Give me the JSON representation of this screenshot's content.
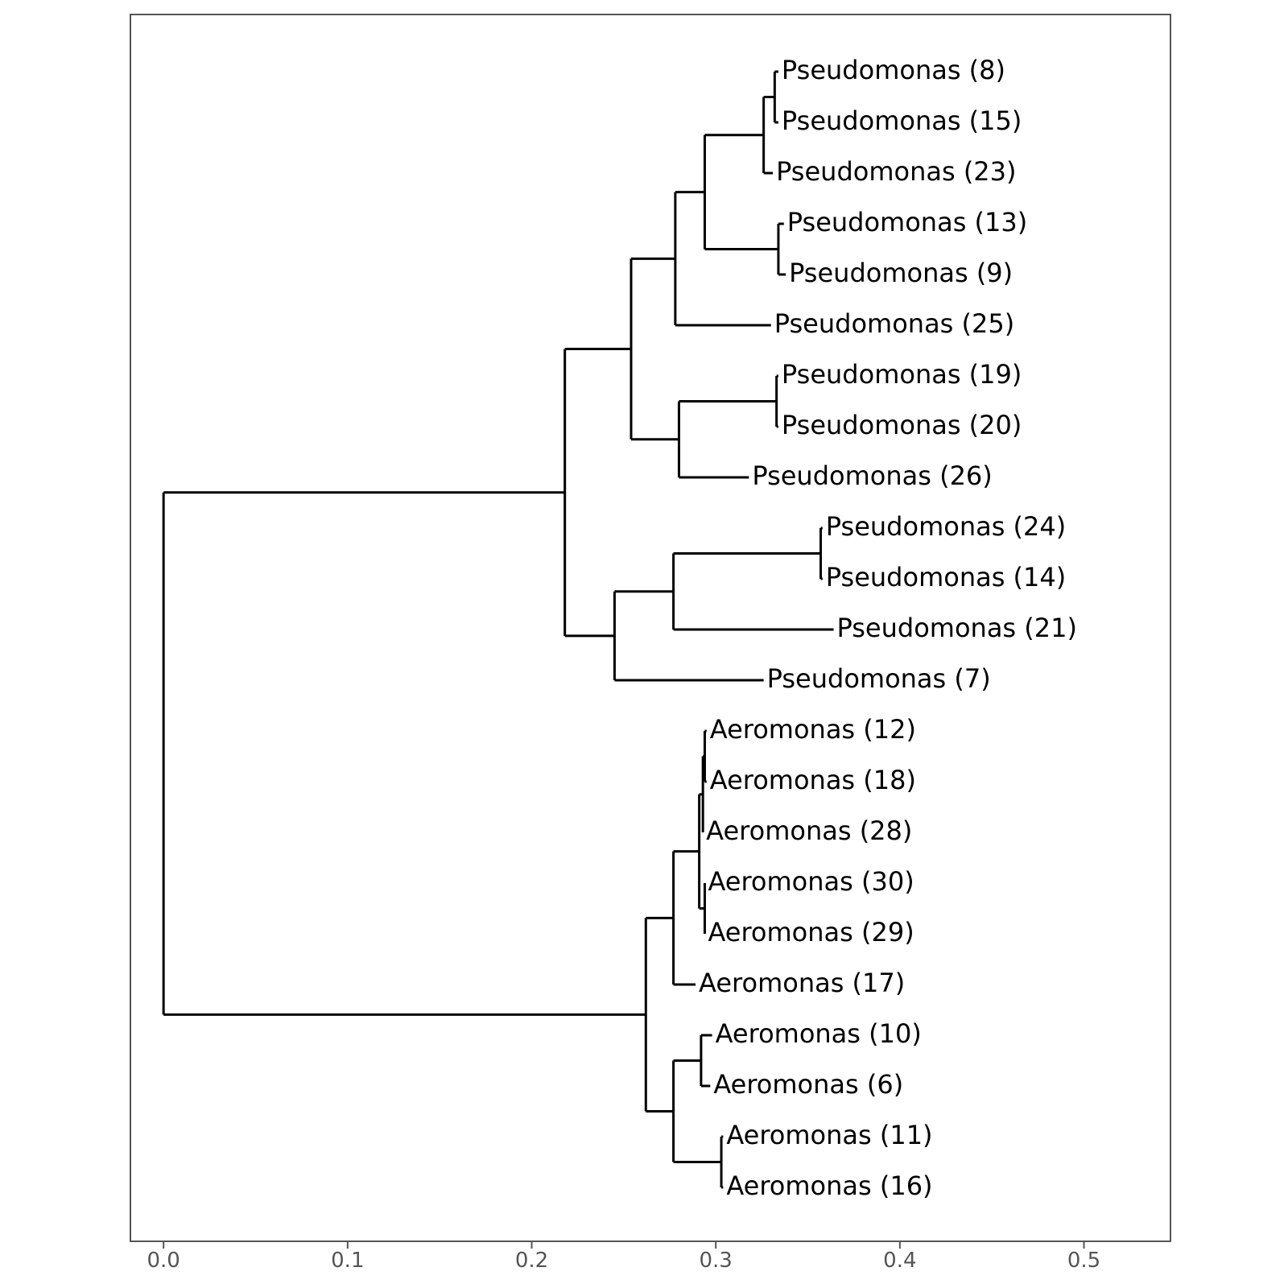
{
  "chart_data": {
    "type": "dendrogram",
    "xlim": [
      -0.018,
      0.547
    ],
    "x_ticks": [
      0.0,
      0.1,
      0.2,
      0.3,
      0.4,
      0.5
    ],
    "x_tick_labels": [
      "0.0",
      "0.1",
      "0.2",
      "0.3",
      "0.4",
      "0.5"
    ],
    "grid": false,
    "tree": {
      "x": 0,
      "children": [
        {
          "x": 0.218,
          "children": [
            {
              "x": 0.254,
              "children": [
                {
                  "x": 0.278,
                  "children": [
                    {
                      "x": 0.294,
                      "children": [
                        {
                          "x": 0.326,
                          "children": [
                            {
                              "x": 0.332,
                              "children": [
                                {
                                  "label": "Pseudomonas (8)",
                                  "x": 0.334
                                },
                                {
                                  "label": "Pseudomonas (15)",
                                  "x": 0.334
                                }
                              ]
                            },
                            {
                              "label": "Pseudomonas (23)",
                              "x": 0.331
                            }
                          ]
                        },
                        {
                          "x": 0.334,
                          "children": [
                            {
                              "label": "Pseudomonas (13)",
                              "x": 0.337
                            },
                            {
                              "label": "Pseudomonas (9)",
                              "x": 0.338
                            }
                          ]
                        }
                      ]
                    },
                    {
                      "label": "Pseudomonas (25)",
                      "x": 0.33
                    }
                  ]
                },
                {
                  "x": 0.28,
                  "children": [
                    {
                      "x": 0.333,
                      "children": [
                        {
                          "label": "Pseudomonas (19)",
                          "x": 0.334
                        },
                        {
                          "label": "Pseudomonas (20)",
                          "x": 0.334
                        }
                      ]
                    },
                    {
                      "label": "Pseudomonas (26)",
                      "x": 0.318
                    }
                  ]
                }
              ]
            },
            {
              "x": 0.245,
              "children": [
                {
                  "x": 0.277,
                  "children": [
                    {
                      "x": 0.357,
                      "children": [
                        {
                          "label": "Pseudomonas (24)",
                          "x": 0.358
                        },
                        {
                          "label": "Pseudomonas (14)",
                          "x": 0.358
                        }
                      ]
                    },
                    {
                      "label": "Pseudomonas (21)",
                      "x": 0.364
                    }
                  ]
                },
                {
                  "label": "Pseudomonas (7)",
                  "x": 0.326
                }
              ]
            }
          ]
        },
        {
          "x": 0.262,
          "children": [
            {
              "x": 0.277,
              "children": [
                {
                  "x": 0.291,
                  "children": [
                    {
                      "x": 0.293,
                      "children": [
                        {
                          "x": 0.294,
                          "children": [
                            {
                              "label": "Aeromonas (12)",
                              "x": 0.295
                            },
                            {
                              "label": "Aeromonas (18)",
                              "x": 0.295
                            }
                          ]
                        },
                        {
                          "label": "Aeromonas (28)",
                          "x": 0.293
                        }
                      ]
                    },
                    {
                      "x": 0.294,
                      "children": [
                        {
                          "label": "Aeromonas (30)",
                          "x": 0.294
                        },
                        {
                          "label": "Aeromonas (29)",
                          "x": 0.294
                        }
                      ]
                    }
                  ]
                },
                {
                  "label": "Aeromonas (17)",
                  "x": 0.289
                }
              ]
            },
            {
              "x": 0.277,
              "children": [
                {
                  "x": 0.292,
                  "children": [
                    {
                      "label": "Aeromonas (10)",
                      "x": 0.298
                    },
                    {
                      "label": "Aeromonas (6)",
                      "x": 0.297
                    }
                  ]
                },
                {
                  "x": 0.303,
                  "children": [
                    {
                      "label": "Aeromonas (11)",
                      "x": 0.304
                    },
                    {
                      "label": "Aeromonas (16)",
                      "x": 0.304
                    }
                  ]
                }
              ]
            }
          ]
        }
      ]
    }
  }
}
